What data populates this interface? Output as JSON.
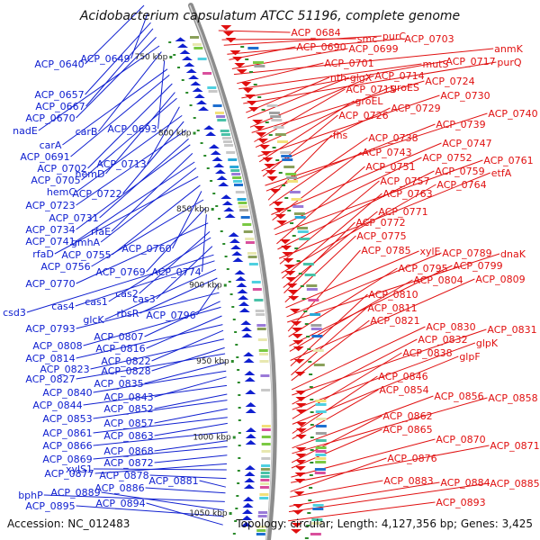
{
  "title": "Acidobacterium capsulatum ATCC 51196, complete genome",
  "footer": {
    "accession": "Accession: NC_012483",
    "summary": "Topology: circular; Length: 4,127,356 bp; Genes: 3,425"
  },
  "colors": {
    "forward": "#e01010",
    "reverse": "#1020d0",
    "backbone": "#8c8c8c",
    "tick": "#2a8a2a"
  },
  "position_labels": [
    {
      "text": "750 kbp",
      "pos_kbp": 750
    },
    {
      "text": "800 kbp",
      "pos_kbp": 800
    },
    {
      "text": "850 kbp",
      "pos_kbp": 850
    },
    {
      "text": "900 kbp",
      "pos_kbp": 900
    },
    {
      "text": "950 kbp",
      "pos_kbp": 950
    },
    {
      "text": "1000 kbp",
      "pos_kbp": 1000
    },
    {
      "text": "1050 kbp",
      "pos_kbp": 1050
    }
  ],
  "reverse_strand_genes": [
    "ACP_0640",
    "ACP_0649",
    "ACP_0657",
    "ACP_0667",
    "ACP_0670",
    "nadE",
    "carB",
    "ACP_0693",
    "carA",
    "ACP_0691",
    "ACP_0702",
    "hemD",
    "ACP_0705",
    "ACP_0713",
    "hemC",
    "ACP_0722",
    "ACP_0723",
    "ACP_0731",
    "ACP_0734",
    "rfaE",
    "ACP_0741",
    "gmhA",
    "rfaD",
    "ACP_0755",
    "ACP_0760",
    "ACP_0756",
    "ACP_0769",
    "ACP_0774",
    "ACP_0770",
    "cas2",
    "cas1",
    "cas3",
    "csd3",
    "cas4",
    "glcK",
    "rbsR",
    "ACP_0796",
    "ACP_0793",
    "ACP_0807",
    "ACP_0808",
    "ACP_0816",
    "ACP_0814",
    "ACP_0822",
    "ACP_0823",
    "ACP_0828",
    "ACP_0827",
    "ACP_0835",
    "ACP_0840",
    "ACP_0843",
    "ACP_0844",
    "ACP_0852",
    "ACP_0853",
    "ACP_0857",
    "ACP_0861",
    "ACP_0863",
    "ACP_0866",
    "ACP_0868",
    "ACP_0869",
    "ACP_0872",
    "ACP_0877",
    "xylS1",
    "ACP_0878",
    "ACP_0881",
    "ACP_0886",
    "bphP",
    "ACP_0889",
    "ACP_0895",
    "ACP_0894"
  ],
  "forward_strand_genes": [
    "ACP_0684",
    "smc",
    "purC",
    "ACP_0703",
    "ACP_0690",
    "ACP_0699",
    "anmK",
    "ACP_0701",
    "mutS",
    "ACP_0717",
    "purQ",
    "nth",
    "glgX",
    "ACP_0714",
    "ACP_0724",
    "ACP_0715",
    "groES",
    "ACP_0730",
    "groEL",
    "ACP_0729",
    "ACP_0726",
    "ACP_0740",
    "ACP_0739",
    "fhs",
    "ACP_0738",
    "ACP_0747",
    "ACP_0743",
    "ACP_0752",
    "ACP_0761",
    "ACP_0751",
    "ACP_0759",
    "etfA",
    "ACP_0757",
    "ACP_0764",
    "ACP_0763",
    "ACP_0771",
    "ACP_0772",
    "ACP_0775",
    "xylE",
    "ACP_0789",
    "dnaK",
    "ACP_0785",
    "ACP_0795",
    "ACP_0799",
    "ACP_0804",
    "ACP_0809",
    "ACP_0810",
    "ACP_0811",
    "ACP_0821",
    "ACP_0830",
    "ACP_0831",
    "ACP_0832",
    "glpK",
    "ACP_0838",
    "glpF",
    "ACP_0846",
    "ACP_0854",
    "ACP_0856",
    "ACP_0858",
    "ACP_0862",
    "ACP_0865",
    "ACP_0870",
    "ACP_0871",
    "ACP_0876",
    "ACP_0883",
    "ACP_0884",
    "ACP_0885",
    "ACP_0893"
  ]
}
